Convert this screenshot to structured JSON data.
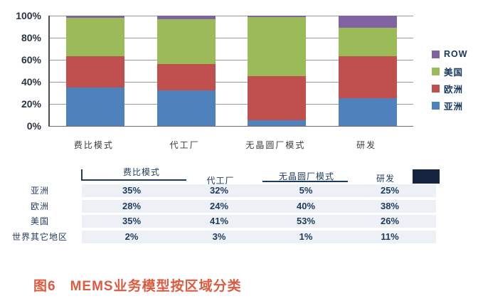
{
  "figure": {
    "caption": "图6　MEMS业务模型按区域分类"
  },
  "chart_data": {
    "type": "bar",
    "variant": "stacked-100-percent",
    "title": "",
    "xlabel": "",
    "ylabel": "",
    "categories": [
      "费比模式",
      "代工厂",
      "无晶圆厂模式",
      "研发"
    ],
    "series": [
      {
        "name": "亚洲",
        "color": "#4f81bd",
        "values": [
          35,
          32,
          5,
          25
        ]
      },
      {
        "name": "欧洲",
        "color": "#c0504d",
        "values": [
          28,
          24,
          40,
          38
        ]
      },
      {
        "name": "美国",
        "color": "#9bbb59",
        "values": [
          35,
          41,
          53,
          26
        ]
      },
      {
        "name": "ROW",
        "color": "#8064a2",
        "values": [
          2,
          3,
          1,
          11
        ]
      }
    ],
    "y_ticks": [
      "100%",
      "80%",
      "60%",
      "40%",
      "20%",
      "0%"
    ],
    "ylim": [
      0,
      100
    ],
    "grid": true,
    "legend_position": "right",
    "legend": [
      "ROW",
      "美国",
      "欧洲",
      "亚洲"
    ]
  },
  "table": {
    "columns": [
      "费比模式",
      "代工厂",
      "无晶圆厂模式",
      "研发"
    ],
    "rows": [
      {
        "label": "亚洲",
        "values": [
          "35%",
          "32%",
          "5%",
          "25%"
        ]
      },
      {
        "label": "欧洲",
        "values": [
          "28%",
          "24%",
          "40%",
          "38%"
        ]
      },
      {
        "label": "美国",
        "values": [
          "35%",
          "41%",
          "53%",
          "26%"
        ]
      },
      {
        "label": "世界其它地区",
        "values": [
          "2%",
          "3%",
          "1%",
          "11%"
        ]
      }
    ]
  },
  "colors": {
    "asia_blue": "#4f81bd",
    "europe_red": "#c0504d",
    "usa_green": "#9bbb59",
    "row_purple": "#8064a2",
    "navy_text": "#1f3a5f",
    "header_swatch": "#16243f",
    "row_stripe": "#edf1f6",
    "caption_orange": "#dc5b41",
    "gridline_gray": "#9b9b9b"
  }
}
